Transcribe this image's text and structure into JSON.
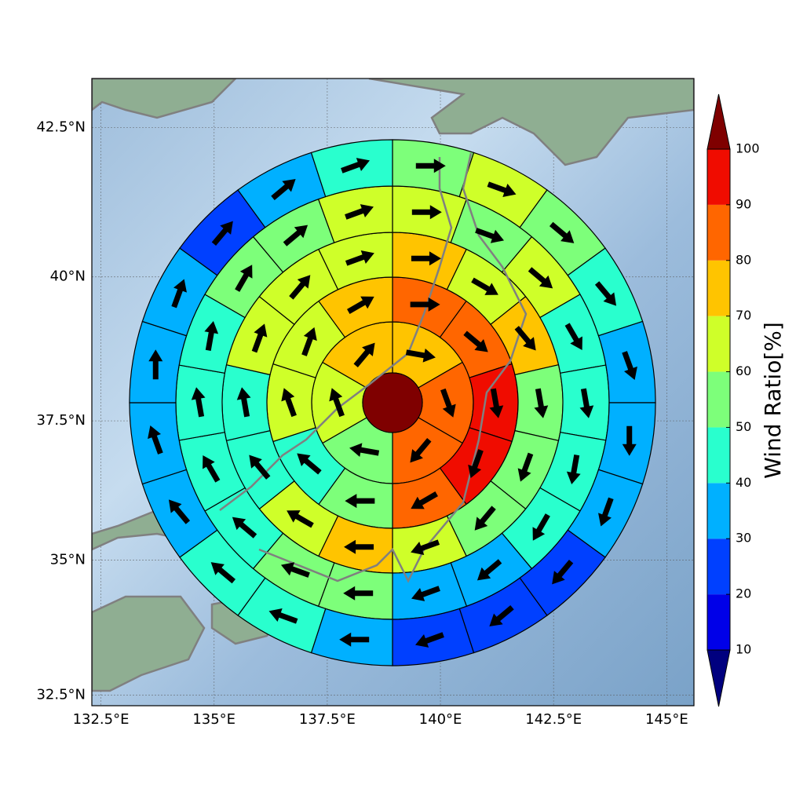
{
  "chart_data": {
    "type": "polar-map",
    "projection": "mercator",
    "grid": true,
    "xlim": [
      132.3,
      145.6
    ],
    "xticks": [
      {
        "value": 132.5,
        "label": "132.5°E"
      },
      {
        "value": 135,
        "label": "135°E"
      },
      {
        "value": 137.5,
        "label": "137.5°E"
      },
      {
        "value": 140,
        "label": "140°E"
      },
      {
        "value": 142.5,
        "label": "142.5°E"
      },
      {
        "value": 145,
        "label": "145°E"
      }
    ],
    "ylim": [
      32.3,
      43.3
    ],
    "yticks": [
      {
        "value": 32.5,
        "label": "32.5°N"
      },
      {
        "value": 35,
        "label": "35°N"
      },
      {
        "value": 37.5,
        "label": "37.5°N"
      },
      {
        "value": 40,
        "label": "40°N"
      },
      {
        "value": 42.5,
        "label": "42.5°N"
      }
    ],
    "center_value": 105,
    "rings": [
      {
        "values": [
          75,
          85,
          85,
          55,
          65,
          75
        ],
        "directions": [
          100,
          160,
          220,
          280,
          340,
          40
        ]
      },
      {
        "values": [
          85,
          85,
          95,
          95,
          85,
          55,
          45,
          65,
          65,
          75
        ],
        "directions": [
          90,
          130,
          170,
          200,
          240,
          270,
          310,
          340,
          20,
          60
        ]
      },
      {
        "values": [
          75,
          65,
          75,
          55,
          55,
          55,
          65,
          75,
          65,
          45,
          45,
          65,
          65,
          65
        ],
        "directions": [
          90,
          120,
          140,
          170,
          200,
          220,
          250,
          270,
          300,
          320,
          350,
          20,
          40,
          70
        ]
      },
      {
        "values": [
          65,
          55,
          65,
          45,
          45,
          45,
          45,
          35,
          35,
          55,
          55,
          45,
          45,
          45,
          45,
          55,
          55,
          65
        ],
        "directions": [
          90,
          110,
          130,
          150,
          170,
          190,
          210,
          230,
          250,
          270,
          290,
          310,
          330,
          350,
          10,
          30,
          50,
          70
        ]
      },
      {
        "values": [
          55,
          65,
          55,
          45,
          35,
          35,
          35,
          25,
          25,
          25,
          35,
          45,
          45,
          35,
          35,
          35,
          35,
          25,
          35,
          45
        ],
        "directions": [
          90,
          110,
          130,
          140,
          160,
          180,
          200,
          220,
          230,
          250,
          270,
          290,
          310,
          320,
          340,
          0,
          20,
          40,
          50,
          70
        ]
      }
    ],
    "colorbar": {
      "label": "Wind Ratio[%]",
      "ticks": [
        10,
        20,
        30,
        40,
        50,
        60,
        70,
        80,
        90,
        100
      ],
      "colors": [
        "#0000e8",
        "#0040ff",
        "#00b0ff",
        "#29ffce",
        "#7dff7a",
        "#cfff29",
        "#ffc400",
        "#ff6600",
        "#f00c00"
      ],
      "under_color": "#00007f",
      "over_color": "#7f0000"
    }
  }
}
